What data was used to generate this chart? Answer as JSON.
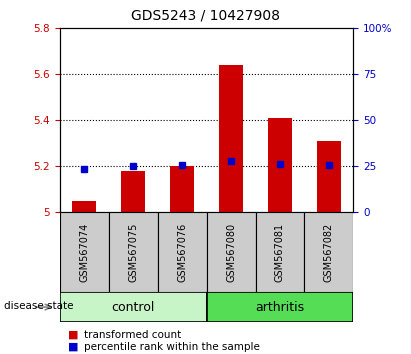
{
  "title": "GDS5243 / 10427908",
  "samples": [
    "GSM567074",
    "GSM567075",
    "GSM567076",
    "GSM567080",
    "GSM567081",
    "GSM567082"
  ],
  "red_values": [
    5.05,
    5.18,
    5.2,
    5.64,
    5.41,
    5.31
  ],
  "blue_values": [
    5.19,
    5.2,
    5.205,
    5.225,
    5.21,
    5.205
  ],
  "ylim_left": [
    5.0,
    5.8
  ],
  "ylim_right": [
    0,
    100
  ],
  "yticks_left": [
    5.0,
    5.2,
    5.4,
    5.6,
    5.8
  ],
  "yticks_right": [
    0,
    25,
    50,
    75,
    100
  ],
  "ytick_labels_left": [
    "5",
    "5.2",
    "5.4",
    "5.6",
    "5.8"
  ],
  "ytick_labels_right": [
    "0",
    "25",
    "50",
    "75",
    "100%"
  ],
  "gridlines": [
    5.2,
    5.4,
    5.6
  ],
  "groups": [
    {
      "label": "control",
      "indices": [
        0,
        1,
        2
      ],
      "color": "#c8f5c8"
    },
    {
      "label": "arthritis",
      "indices": [
        3,
        4,
        5
      ],
      "color": "#55dd55"
    }
  ],
  "bar_color": "#cc0000",
  "bar_base": 5.0,
  "marker_color": "#0000cc",
  "marker_size": 5,
  "bg_color_plot": "#ffffff",
  "bg_color_label": "#cccccc",
  "disease_state_label": "disease state",
  "legend_items": [
    {
      "color": "#cc0000",
      "label": "transformed count"
    },
    {
      "color": "#0000cc",
      "label": "percentile rank within the sample"
    }
  ],
  "title_fontsize": 10,
  "tick_fontsize": 7.5,
  "sample_fontsize": 7,
  "group_fontsize": 9
}
